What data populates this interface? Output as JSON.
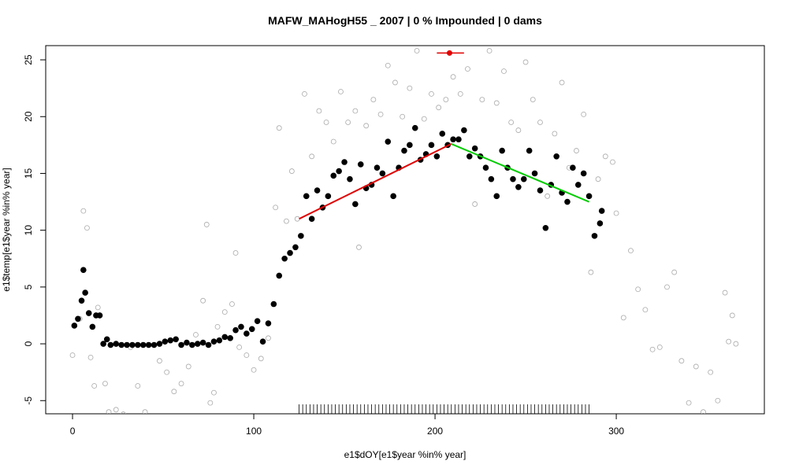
{
  "chart_data": {
    "type": "scatter",
    "title": "MAFW_MAHogH55 _ 2007   |   0  % Impounded |  0  dams",
    "xlabel": "e1$dOY[e1$year %in% year]",
    "ylabel": "e1$temp[e1$year %in% year]",
    "xlim": [
      -14.8,
      381.7
    ],
    "ylim": [
      -6.16,
      26.25
    ],
    "xticks": [
      0,
      100,
      200,
      300
    ],
    "yticks": [
      -5,
      0,
      5,
      10,
      15,
      20,
      25
    ],
    "series": [
      {
        "color": "#aaaaaa",
        "marker": "open",
        "x": [
          0,
          4,
          6,
          8,
          10,
          12,
          14,
          18,
          20,
          24,
          28,
          32,
          36,
          40,
          44,
          48,
          52,
          56,
          60,
          64,
          68,
          72,
          74,
          76,
          78,
          80,
          84,
          88,
          90,
          92,
          96,
          100,
          104,
          108,
          112,
          114,
          118,
          121,
          124,
          128,
          132,
          136,
          140,
          144,
          148,
          152,
          156,
          158,
          162,
          166,
          170,
          174,
          178,
          182,
          186,
          190,
          194,
          198,
          202,
          206,
          210,
          214,
          218,
          222,
          226,
          230,
          234,
          238,
          242,
          246,
          250,
          254,
          258,
          262,
          266,
          270,
          274,
          278,
          282,
          286,
          290,
          294,
          298,
          300,
          304,
          308,
          312,
          316,
          320,
          324,
          328,
          332,
          336,
          340,
          344,
          348,
          352,
          356,
          360,
          362,
          364,
          366
        ],
        "values": [
          -1,
          2.2,
          11.7,
          10.2,
          -1.2,
          -3.7,
          3.2,
          -3.5,
          -6,
          -5.8,
          -6.2,
          -0.3,
          -3.7,
          -6,
          -6.5,
          -1.5,
          -2.5,
          -4.2,
          -3.5,
          -2,
          0.8,
          3.8,
          10.5,
          -5.2,
          -4.3,
          1.5,
          2.8,
          3.5,
          8,
          -0.3,
          -1,
          -2.3,
          -1.3,
          0.5,
          12,
          19,
          10.8,
          15.2,
          11,
          22,
          16.5,
          20.5,
          19.5,
          17.8,
          22.2,
          19.5,
          20.5,
          8.5,
          19.2,
          21.5,
          20.2,
          24.5,
          23,
          20,
          22.5,
          25.8,
          19.8,
          22,
          20.8,
          21.5,
          23.5,
          22,
          24.2,
          12.3,
          21.5,
          25.8,
          21.2,
          24,
          19.5,
          18.8,
          24.8,
          21.5,
          19.5,
          13,
          18.5,
          23,
          15.5,
          17,
          20.2,
          6.3,
          14.5,
          16.5,
          16,
          11.5,
          2.3,
          8.2,
          4.8,
          3,
          -0.5,
          -0.3,
          5,
          6.3,
          -1.5,
          -5.2,
          -2,
          -6,
          -2.5,
          -5,
          4.5,
          0.2,
          2.5,
          0
        ]
      },
      {
        "color": "#000000",
        "marker": "filled",
        "x": [
          1,
          3,
          5,
          6,
          7,
          9,
          11,
          13,
          15,
          17,
          19,
          21,
          24,
          27,
          30,
          33,
          36,
          39,
          42,
          45,
          48,
          51,
          54,
          57,
          60,
          63,
          66,
          69,
          72,
          75,
          78,
          81,
          84,
          87,
          90,
          93,
          96,
          99,
          102,
          105,
          108,
          111,
          114,
          117,
          120,
          123,
          126,
          129,
          132,
          135,
          138,
          141,
          144,
          147,
          150,
          153,
          156,
          159,
          162,
          165,
          168,
          171,
          174,
          177,
          180,
          183,
          186,
          189,
          192,
          195,
          198,
          201,
          204,
          207,
          210,
          213,
          216,
          219,
          222,
          225,
          228,
          231,
          234,
          237,
          240,
          243,
          246,
          249,
          252,
          255,
          258,
          261,
          264,
          267,
          270,
          273,
          276,
          279,
          282,
          285,
          288,
          291,
          292
        ],
        "values": [
          1.6,
          2.2,
          3.8,
          6.5,
          4.5,
          2.7,
          1.5,
          2.5,
          2.5,
          0,
          0.4,
          -0.1,
          0,
          -0.1,
          -0.1,
          -0.1,
          -0.1,
          -0.1,
          -0.1,
          -0.1,
          0,
          0.2,
          0.3,
          0.4,
          -0.1,
          0.1,
          -0.1,
          0,
          0.1,
          -0.1,
          0.2,
          0.3,
          0.6,
          0.5,
          1.2,
          1.5,
          0.9,
          1.3,
          2,
          0.2,
          1.8,
          3.5,
          6,
          7.5,
          8,
          8.5,
          9.5,
          13,
          11,
          13.5,
          12,
          13,
          14.8,
          15.2,
          16,
          14.5,
          12.3,
          15.8,
          13.7,
          14,
          15.5,
          15,
          17.8,
          13,
          15.5,
          17,
          17.5,
          19,
          16.2,
          16.7,
          17.5,
          16.5,
          18.5,
          17.5,
          18,
          18,
          18.8,
          16.5,
          17.2,
          16.5,
          15.5,
          14.5,
          13,
          17,
          15.5,
          14.5,
          13.8,
          14.5,
          17,
          15,
          13.5,
          10.2,
          14,
          16.5,
          13.3,
          12.5,
          15.5,
          14,
          15,
          13,
          9.5,
          10.6,
          11.7
        ]
      }
    ],
    "fits": [
      {
        "color": "#e00000",
        "x": [
          125,
          209
        ],
        "values": [
          11,
          17.6
        ]
      },
      {
        "color": "#00cc00",
        "x": [
          209,
          285
        ],
        "values": [
          17.6,
          12.5
        ]
      }
    ],
    "point": {
      "color": "#e00000",
      "x": 208,
      "y": 25.6,
      "xerr": [
        201,
        216
      ]
    },
    "rug_x": [
      125,
      127,
      129,
      131,
      133,
      135,
      137,
      139,
      141,
      143,
      145,
      147,
      149,
      151,
      153,
      155,
      157,
      159,
      161,
      163,
      165,
      167,
      169,
      171,
      173,
      175,
      177,
      179,
      181,
      183,
      185,
      187,
      189,
      191,
      193,
      195,
      197,
      199,
      201,
      203,
      205,
      207,
      209,
      211,
      213,
      215,
      217,
      219,
      221,
      223,
      225,
      227,
      229,
      231,
      233,
      235,
      237,
      239,
      241,
      243,
      245,
      247,
      249,
      251,
      253,
      255,
      257,
      259,
      261,
      263,
      265,
      267,
      269,
      271,
      273,
      275,
      277,
      279,
      281,
      283,
      285
    ]
  }
}
